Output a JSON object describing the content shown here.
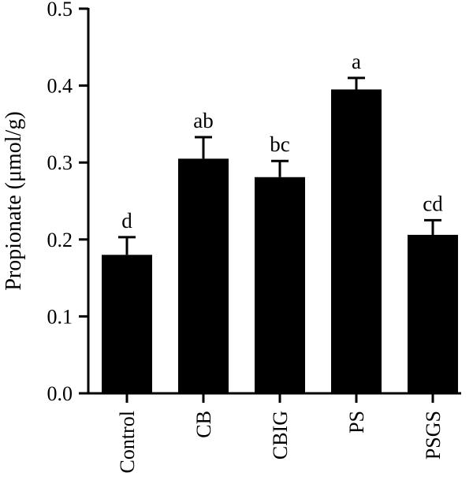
{
  "chart_data": {
    "type": "bar",
    "title": "",
    "xlabel": "",
    "ylabel": "Propionate (μmol/g)",
    "ylim": [
      0,
      0.5
    ],
    "yticks": [
      "0.0",
      "0.1",
      "0.2",
      "0.3",
      "0.4",
      "0.5"
    ],
    "categories": [
      "Control",
      "CB",
      "CBIG",
      "PS",
      "PSGS"
    ],
    "values": [
      0.18,
      0.305,
      0.281,
      0.395,
      0.206
    ],
    "errors": [
      0.023,
      0.028,
      0.021,
      0.015,
      0.019
    ],
    "significance_labels": [
      "d",
      "ab",
      "bc",
      "a",
      "cd"
    ],
    "bar_color": "#000000",
    "grid": false,
    "legend": "none"
  }
}
